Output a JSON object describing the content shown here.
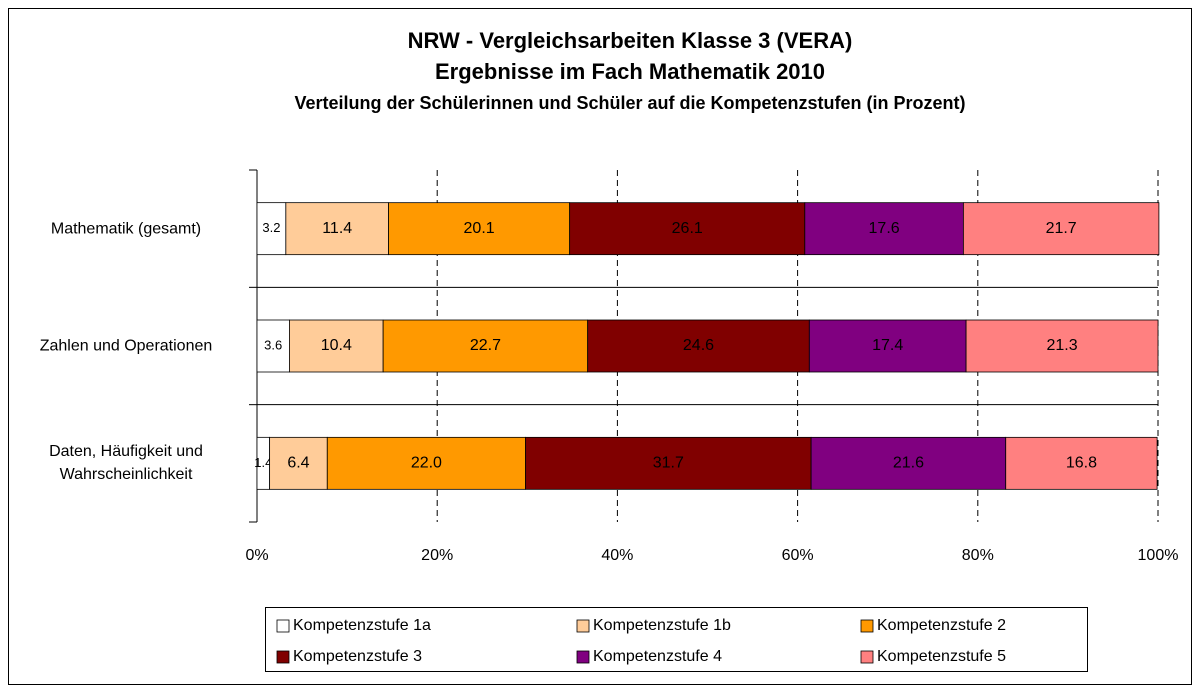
{
  "chart_data": {
    "type": "stacked_barh",
    "title": "NRW - Vergleichsarbeiten Klasse 3 (VERA)",
    "subtitle": "Ergebnisse im Fach Mathematik 2010",
    "subtitle2": "Verteilung der Schülerinnen und Schüler auf die Kompetenzstufen (in Prozent)",
    "categories": [
      "Mathematik (gesamt)",
      "Zahlen und Operationen",
      "Daten, Häufigkeit und Wahrscheinlichkeit"
    ],
    "series": [
      {
        "name": "Kompetenzstufe 1a",
        "color": "#ffffff",
        "values": [
          3.2,
          3.6,
          1.4
        ],
        "value_labels": [
          "3.2",
          "3.6",
          "1.4"
        ]
      },
      {
        "name": "Kompetenzstufe 1b",
        "color": "#ffcc99",
        "values": [
          11.4,
          10.4,
          6.4
        ],
        "value_labels": [
          "11.4",
          "10.4",
          "6.4"
        ]
      },
      {
        "name": "Kompetenzstufe 2",
        "color": "#ff9900",
        "values": [
          20.1,
          22.7,
          22.0
        ],
        "value_labels": [
          "20.1",
          "22.7",
          "22.0"
        ]
      },
      {
        "name": "Kompetenzstufe 3",
        "color": "#800000",
        "values": [
          26.1,
          24.6,
          31.7
        ],
        "value_labels": [
          "26.1",
          "24.6",
          "31.7"
        ]
      },
      {
        "name": "Kompetenzstufe 4",
        "color": "#800080",
        "values": [
          17.6,
          17.4,
          21.6
        ],
        "value_labels": [
          "17.6",
          "17.4",
          "21.6"
        ]
      },
      {
        "name": "Kompetenzstufe 5",
        "color": "#ff8080",
        "values": [
          21.7,
          21.3,
          16.8
        ],
        "value_labels": [
          "21.7",
          "21.3",
          "16.8"
        ]
      }
    ],
    "xlim": [
      0,
      100
    ],
    "xticks": [
      {
        "value": 0,
        "label": "0%"
      },
      {
        "value": 20,
        "label": "20%"
      },
      {
        "value": 40,
        "label": "40%"
      },
      {
        "value": 60,
        "label": "60%"
      },
      {
        "value": 80,
        "label": "80%"
      },
      {
        "value": 100,
        "label": "100%"
      }
    ],
    "grid": true,
    "legend": "bottom"
  }
}
